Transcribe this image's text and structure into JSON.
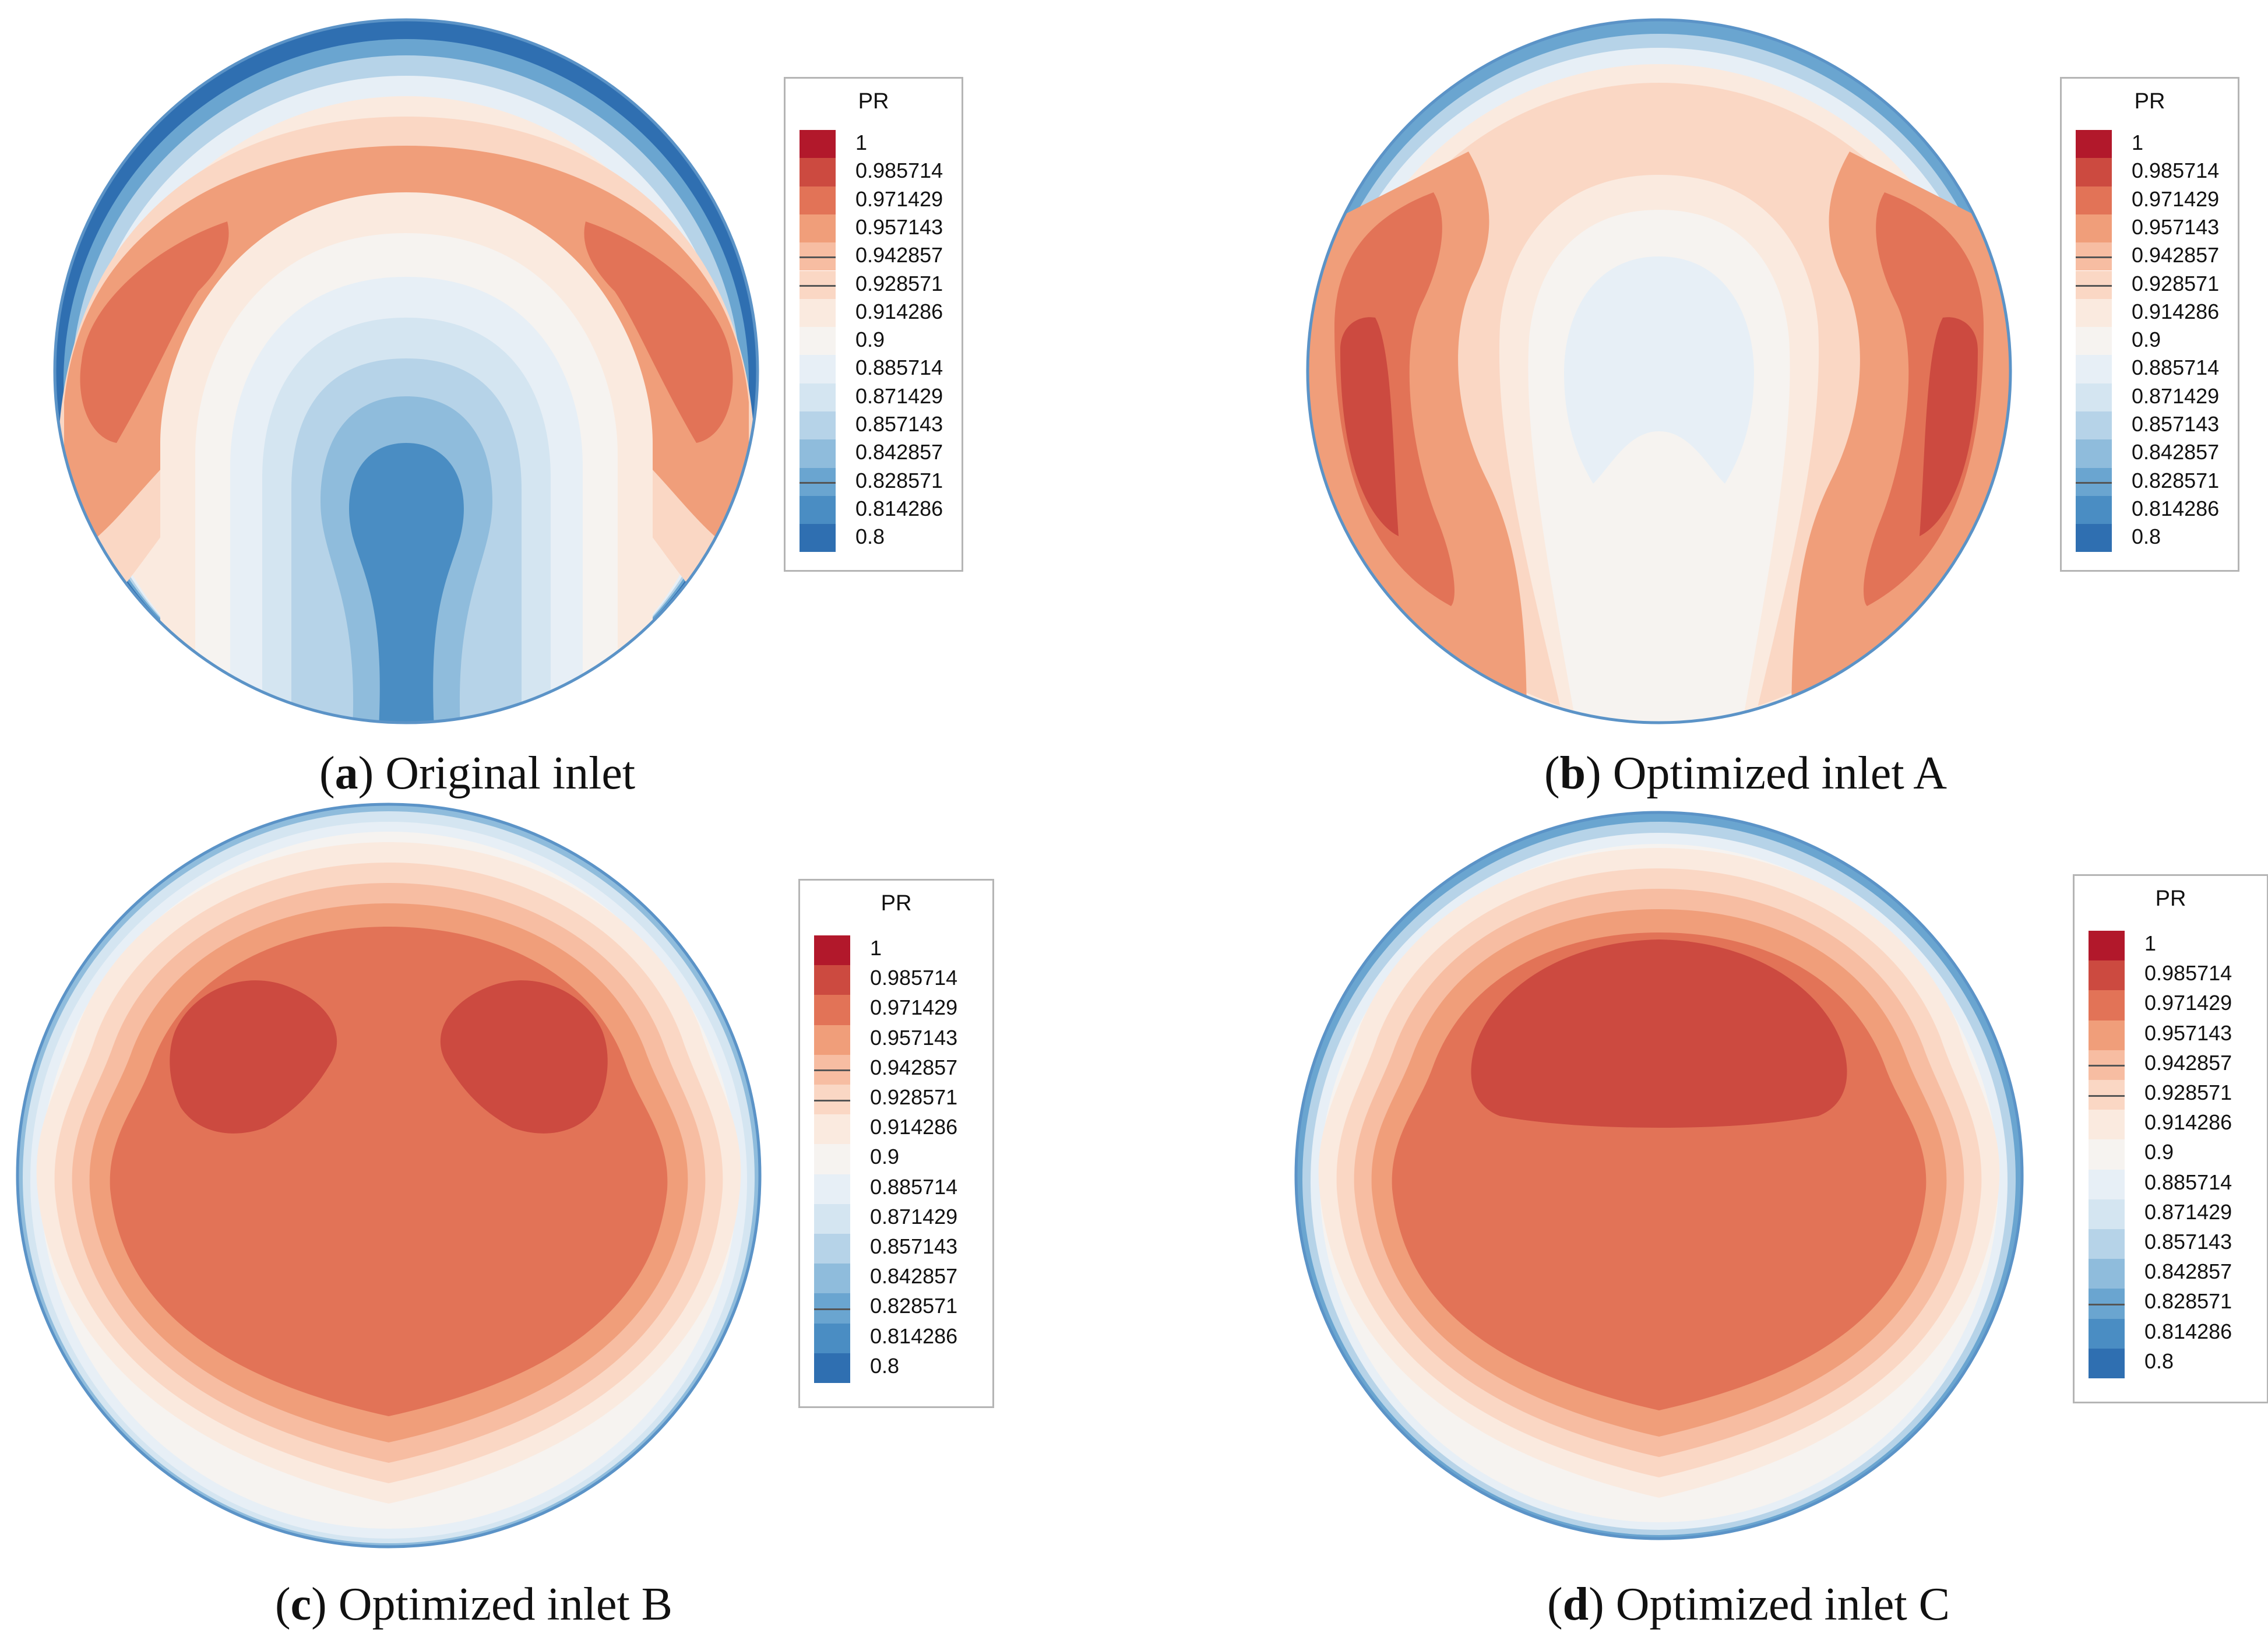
{
  "figure": {
    "legend_title": "PR",
    "legend_levels": [
      "1",
      "0.985714",
      "0.971429",
      "0.957143",
      "0.942857",
      "0.928571",
      "0.914286",
      "0.9",
      "0.885714",
      "0.871429",
      "0.857143",
      "0.842857",
      "0.828571",
      "0.814286",
      "0.8"
    ],
    "colors": {
      "1": "#b2182b",
      "0.985714": "#cc4a40",
      "0.971429": "#e27357",
      "0.957143": "#f09e7a",
      "0.942857": "#f7bda2",
      "0.928571": "#fad7c4",
      "0.914286": "#faeadf",
      "0.9": "#f6f3f0",
      "0.885714": "#e7eff6",
      "0.871429": "#d4e5f1",
      "0.857143": "#b6d3e8",
      "0.842857": "#8fbcdc",
      "0.828571": "#6aa5d0",
      "0.814286": "#4a8dc3",
      "0.8": "#2f6fb1"
    },
    "panels": [
      {
        "id": "a",
        "letter": "a",
        "label": "Original inlet"
      },
      {
        "id": "b",
        "letter": "b",
        "label": "Optimized inlet A"
      },
      {
        "id": "c",
        "letter": "c",
        "label": "Optimized inlet B"
      },
      {
        "id": "d",
        "letter": "d",
        "label": "Optimized inlet C"
      }
    ]
  }
}
